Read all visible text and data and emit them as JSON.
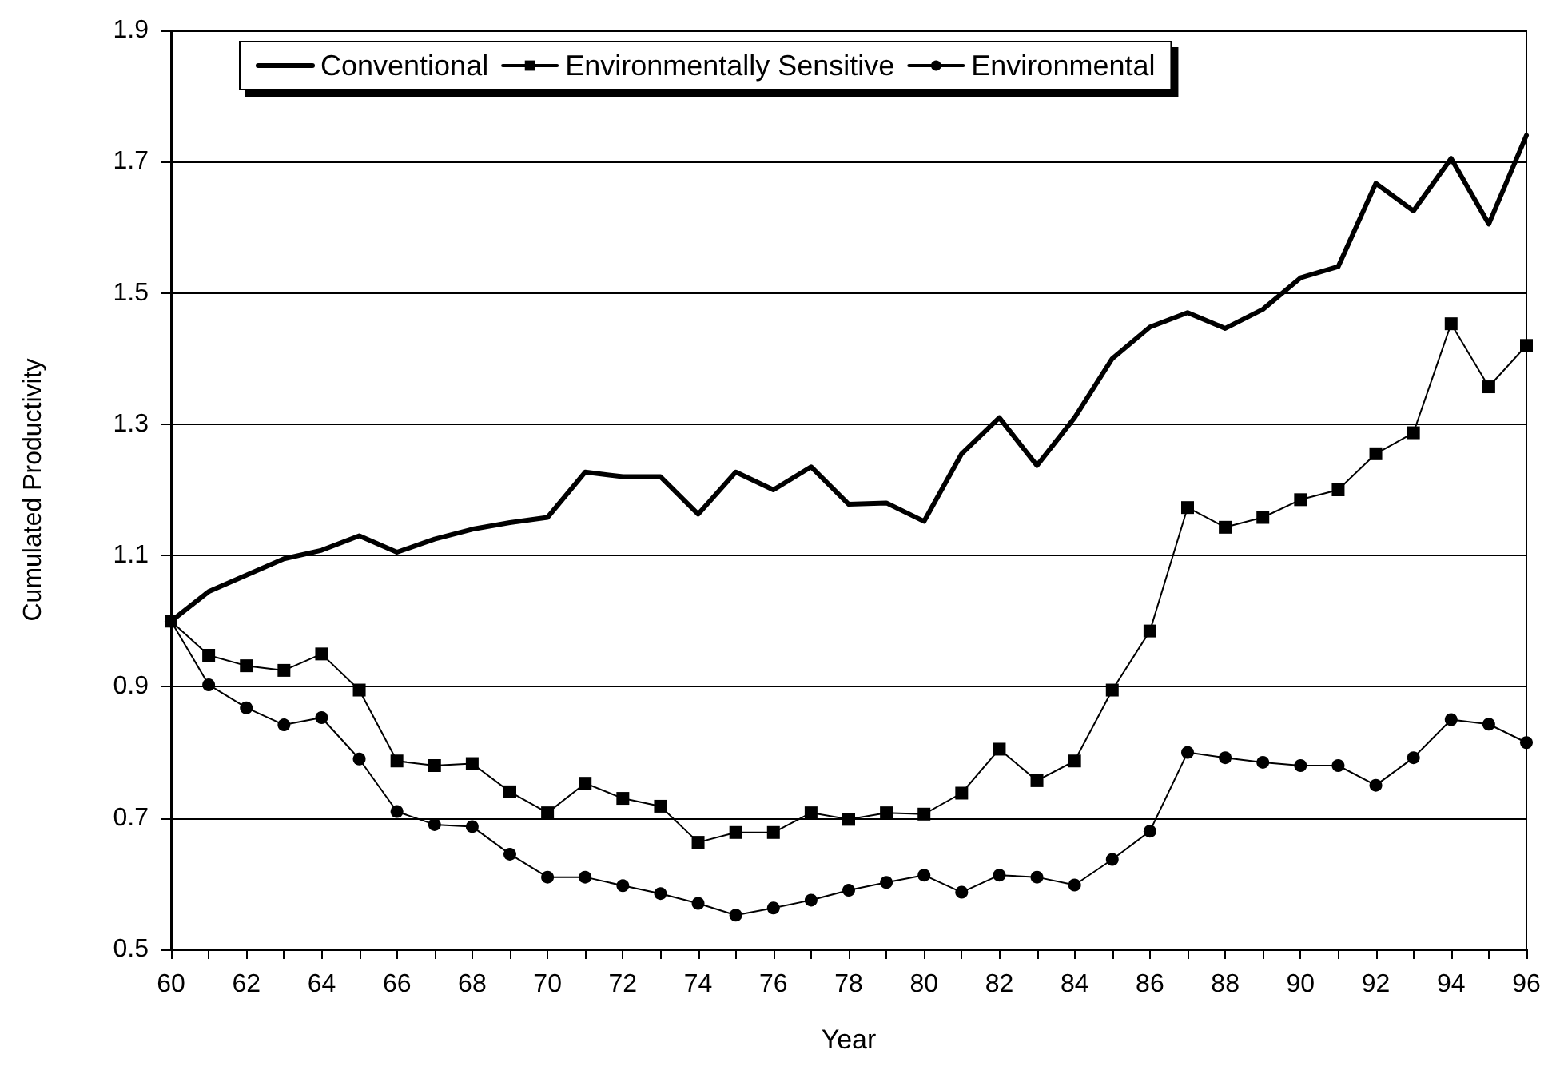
{
  "chart_data": {
    "type": "line",
    "xlabel": "Year",
    "ylabel": "Cumulated Productivity",
    "x": [
      60,
      61,
      62,
      63,
      64,
      65,
      66,
      67,
      68,
      69,
      70,
      71,
      72,
      73,
      74,
      75,
      76,
      77,
      78,
      79,
      80,
      81,
      82,
      83,
      84,
      85,
      86,
      87,
      88,
      89,
      90,
      91,
      92,
      93,
      94,
      95,
      96
    ],
    "xlim": [
      60,
      96
    ],
    "xticks": [
      60,
      62,
      64,
      66,
      68,
      70,
      72,
      74,
      76,
      78,
      80,
      82,
      84,
      86,
      88,
      90,
      92,
      94,
      96
    ],
    "ylim": [
      0.5,
      1.9
    ],
    "yticks": [
      0.5,
      0.7,
      0.9,
      1.1,
      1.3,
      1.5,
      1.7,
      1.9
    ],
    "grid": "y",
    "legend": "top",
    "series": [
      {
        "name": "Conventional",
        "color": "#000000",
        "marker": "none",
        "values": [
          1.0,
          1.045,
          1.07,
          1.095,
          1.108,
          1.13,
          1.105,
          1.125,
          1.14,
          1.15,
          1.158,
          1.227,
          1.22,
          1.22,
          1.163,
          1.227,
          1.2,
          1.235,
          1.178,
          1.18,
          1.152,
          1.255,
          1.31,
          1.237,
          1.31,
          1.4,
          1.448,
          1.47,
          1.446,
          1.475,
          1.523,
          1.54,
          1.667,
          1.625,
          1.705,
          1.605,
          1.74
        ]
      },
      {
        "name": "Environmentally Sensitive",
        "color": "#000000",
        "marker": "square",
        "values": [
          1.0,
          0.948,
          0.932,
          0.925,
          0.95,
          0.895,
          0.787,
          0.78,
          0.783,
          0.74,
          0.708,
          0.753,
          0.73,
          0.718,
          0.663,
          0.678,
          0.678,
          0.708,
          0.698,
          0.708,
          0.706,
          0.738,
          0.805,
          0.757,
          0.787,
          0.895,
          0.985,
          1.173,
          1.143,
          1.158,
          1.185,
          1.2,
          1.255,
          1.287,
          1.453,
          1.357,
          1.42
        ]
      },
      {
        "name": "Environmental",
        "color": "#000000",
        "marker": "circle",
        "values": [
          1.0,
          0.903,
          0.868,
          0.842,
          0.853,
          0.79,
          0.71,
          0.69,
          0.687,
          0.645,
          0.61,
          0.61,
          0.597,
          0.585,
          0.57,
          0.552,
          0.563,
          0.575,
          0.59,
          0.602,
          0.613,
          0.587,
          0.613,
          0.61,
          0.598,
          0.637,
          0.68,
          0.8,
          0.792,
          0.785,
          0.78,
          0.78,
          0.75,
          0.792,
          0.85,
          0.843,
          0.815
        ]
      }
    ]
  }
}
